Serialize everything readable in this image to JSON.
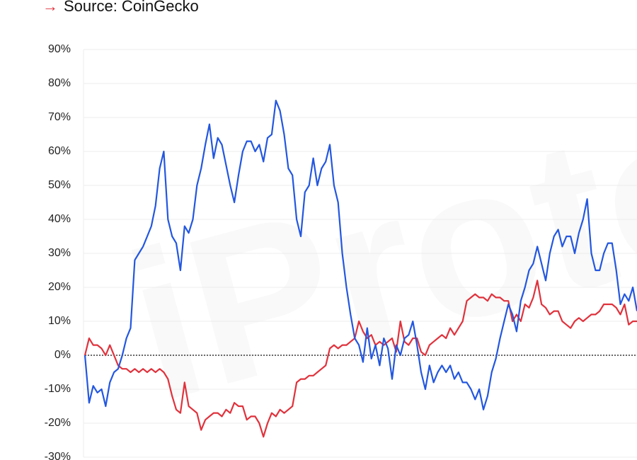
{
  "chart_data": {
    "type": "line",
    "source_icon": "→",
    "source": "Source: CoinGecko",
    "watermark": "iProto",
    "ylim": [
      -30,
      90
    ],
    "yticks": [
      {
        "value": -30,
        "label": "-30%"
      },
      {
        "value": -20,
        "label": "-20%"
      },
      {
        "value": -10,
        "label": "-10%"
      },
      {
        "value": 0,
        "label": "0%"
      },
      {
        "value": 10,
        "label": "10%"
      },
      {
        "value": 20,
        "label": "20%"
      },
      {
        "value": 30,
        "label": "30%"
      },
      {
        "value": 40,
        "label": "40%"
      },
      {
        "value": 50,
        "label": "50%"
      },
      {
        "value": 60,
        "label": "60%"
      },
      {
        "value": 70,
        "label": "70%"
      },
      {
        "value": 80,
        "label": "80%"
      },
      {
        "value": 90,
        "label": "90%"
      }
    ],
    "grid": true,
    "series": [
      {
        "color": "#2357e0",
        "values": [
          0,
          -14,
          -9,
          -11,
          -10,
          -15,
          -8,
          -5,
          -4,
          0,
          5,
          8,
          28,
          30,
          32,
          35,
          38,
          44,
          55,
          60,
          40,
          35,
          33,
          25,
          38,
          36,
          40,
          50,
          55,
          62,
          68,
          58,
          64,
          62,
          56,
          50,
          45,
          53,
          60,
          63,
          63,
          60,
          62,
          57,
          64,
          65,
          75,
          72,
          65,
          55,
          53,
          40,
          35,
          48,
          50,
          58,
          50,
          55,
          57,
          62,
          50,
          45,
          30,
          20,
          12,
          5,
          3,
          -2,
          8,
          -1,
          3,
          -3,
          5,
          2,
          -7,
          3,
          0,
          5,
          6,
          10,
          3,
          -5,
          -10,
          -3,
          -8,
          -5,
          -3,
          -5,
          -3,
          -7,
          -5,
          -8,
          -8,
          -10,
          -13,
          -10,
          -16,
          -12,
          -5,
          -1,
          5,
          10,
          15,
          12,
          7,
          16,
          20,
          25,
          27,
          32,
          27,
          22,
          30,
          35,
          37,
          32,
          35,
          35,
          30,
          36,
          40,
          46,
          30,
          25,
          25,
          30,
          33,
          33,
          25,
          15,
          18,
          16,
          20,
          13
        ]
      },
      {
        "color": "#e0323c",
        "values": [
          0,
          5,
          3,
          3,
          2,
          0,
          3,
          0,
          -3,
          -4,
          -4,
          -5,
          -4,
          -5,
          -4,
          -5,
          -4,
          -5,
          -4,
          -5,
          -7,
          -12,
          -16,
          -17,
          -8,
          -15,
          -16,
          -17,
          -22,
          -19,
          -18,
          -17,
          -17,
          -18,
          -16,
          -17,
          -14,
          -15,
          -15,
          -19,
          -18,
          -18,
          -20,
          -24,
          -20,
          -17,
          -18,
          -16,
          -17,
          -16,
          -15,
          -8,
          -7,
          -7,
          -6,
          -6,
          -5,
          -4,
          -3,
          2,
          3,
          2,
          3,
          3,
          4,
          5,
          10,
          7,
          5,
          6,
          3,
          4,
          3,
          4,
          5,
          1,
          10,
          4,
          3,
          5,
          5,
          1,
          0,
          3,
          4,
          5,
          6,
          5,
          8,
          6,
          8,
          10,
          16,
          17,
          18,
          17,
          17,
          16,
          18,
          17,
          17,
          16,
          16,
          10,
          12,
          10,
          15,
          14,
          17,
          22,
          15,
          14,
          12,
          13,
          13,
          10,
          9,
          8,
          10,
          11,
          10,
          11,
          12,
          12,
          13,
          15,
          15,
          15,
          14,
          12,
          15,
          9,
          10,
          10
        ]
      }
    ]
  }
}
